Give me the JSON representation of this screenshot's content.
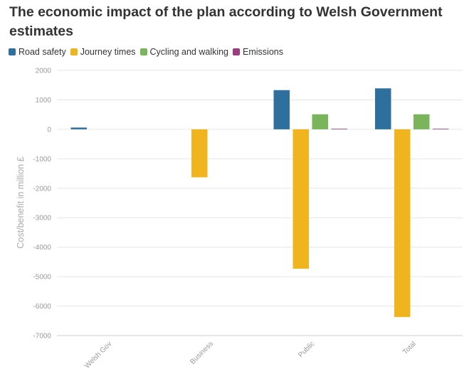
{
  "chart_data": {
    "type": "bar",
    "title": "The economic impact of the plan according to Welsh Government estimates",
    "xlabel": "",
    "ylabel": "Cost/benefit in million £",
    "ylim": [
      -7000,
      2000
    ],
    "yticks": [
      2000,
      1000,
      0,
      -1000,
      -2000,
      -3000,
      -4000,
      -5000,
      -6000,
      -7000
    ],
    "categories": [
      "Welsh Gov",
      "Business",
      "Public",
      "Total"
    ],
    "series": [
      {
        "name": "Road safety",
        "color": "#2e6f9e",
        "values": [
          60,
          0,
          1330,
          1390
        ]
      },
      {
        "name": "Journey times",
        "color": "#f0b51e",
        "values": [
          0,
          -1630,
          -4730,
          -6370
        ]
      },
      {
        "name": "Cycling and walking",
        "color": "#7ab55c",
        "values": [
          0,
          0,
          510,
          510
        ]
      },
      {
        "name": "Emissions",
        "color": "#9c3c80",
        "values": [
          0,
          0,
          20,
          20
        ]
      }
    ],
    "grid": true,
    "legend_position": "top-left"
  }
}
